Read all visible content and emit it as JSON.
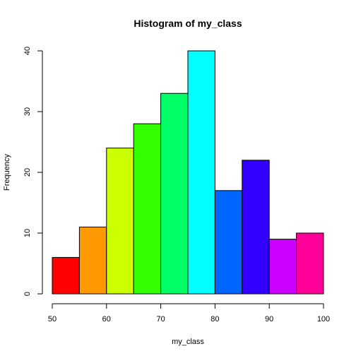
{
  "chart_data": {
    "type": "bar",
    "title": "Histogram of my_class",
    "xlabel": "my_class",
    "ylabel": "Frequency",
    "bin_edges": [
      50,
      55,
      60,
      65,
      70,
      75,
      80,
      85,
      90,
      95,
      100
    ],
    "values": [
      6,
      11,
      24,
      28,
      33,
      40,
      17,
      22,
      9,
      10
    ],
    "colors": [
      "#FF0000",
      "#FF9900",
      "#CCFF00",
      "#33FF00",
      "#00FF66",
      "#00FFFF",
      "#0066FF",
      "#3300FF",
      "#CC00FF",
      "#FF0099"
    ],
    "xlim": [
      50,
      100
    ],
    "ylim": [
      0,
      40
    ],
    "xticks": [
      50,
      60,
      70,
      80,
      90,
      100
    ],
    "yticks": [
      0,
      10,
      20,
      30,
      40
    ],
    "grid": false,
    "legend": "none"
  }
}
